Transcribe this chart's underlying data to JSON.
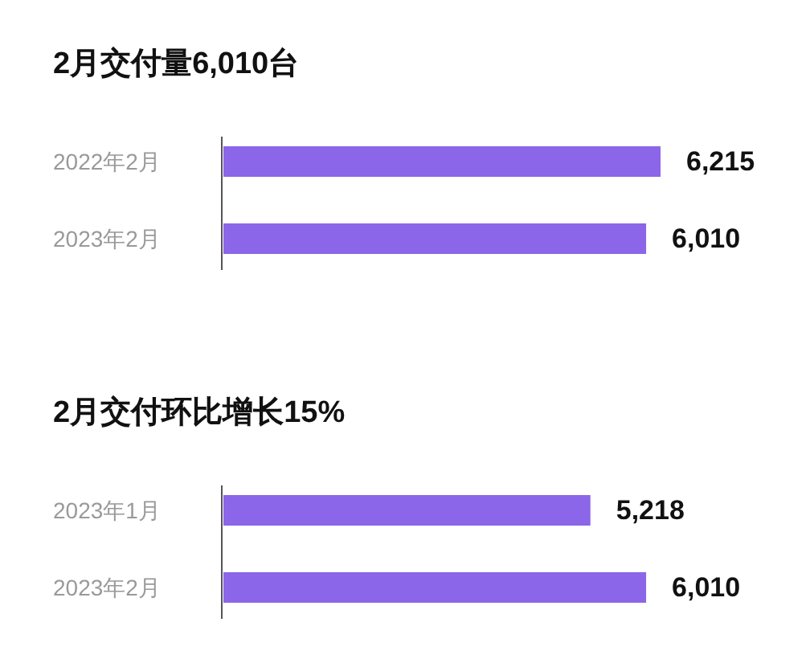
{
  "chart_data": [
    {
      "type": "bar",
      "orientation": "horizontal",
      "title": "2月交付量6,010台",
      "categories": [
        "2022年2月",
        "2023年2月"
      ],
      "values": [
        6215,
        6010
      ],
      "value_labels": [
        "6,215",
        "6,010"
      ],
      "color": "#8b66e8"
    },
    {
      "type": "bar",
      "orientation": "horizontal",
      "title": "2月交付环比增长15%",
      "categories": [
        "2023年1月",
        "2023年2月"
      ],
      "values": [
        5218,
        6010
      ],
      "value_labels": [
        "5,218",
        "6,010"
      ],
      "color": "#8b66e8"
    }
  ]
}
